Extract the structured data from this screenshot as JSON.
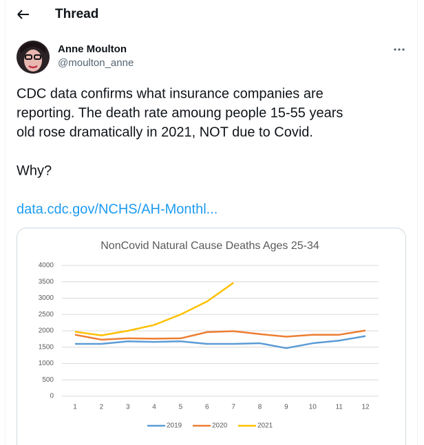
{
  "header": {
    "title": "Thread"
  },
  "tweet": {
    "author_name": "Anne Moulton",
    "handle": "@moulton_anne",
    "text_lines": [
      "CDC data confirms what insurance companies are",
      "reporting.  The death rate amoung people 15-55 years",
      "old rose dramatically in 2021, NOT due to Covid.",
      "Why?"
    ],
    "link": "data.cdc.gov/NCHS/AH-Monthl..."
  },
  "chart_data": {
    "type": "line",
    "title": "NonCovid Natural Cause Deaths Ages 25-34",
    "categories": [
      "1",
      "2",
      "3",
      "4",
      "5",
      "6",
      "7",
      "8",
      "9",
      "10",
      "11",
      "12"
    ],
    "series": [
      {
        "name": "2019",
        "color": "#5b9bd5",
        "values": [
          1600,
          1600,
          1680,
          1660,
          1680,
          1600,
          1600,
          1620,
          1470,
          1620,
          1700,
          1840
        ]
      },
      {
        "name": "2020",
        "color": "#ed7d31",
        "values": [
          1880,
          1730,
          1770,
          1760,
          1770,
          1960,
          1990,
          1900,
          1820,
          1880,
          1880,
          2010
        ]
      },
      {
        "name": "2021",
        "color": "#ffc000",
        "values": [
          1970,
          1860,
          2000,
          2180,
          2500,
          2900,
          3470,
          null,
          null,
          null,
          null,
          null
        ]
      }
    ],
    "ylim": [
      0,
      4000
    ],
    "yticks": [
      0,
      500,
      1000,
      1500,
      2000,
      2500,
      3000,
      3500,
      4000
    ],
    "grid": true,
    "legend": "bottom"
  }
}
